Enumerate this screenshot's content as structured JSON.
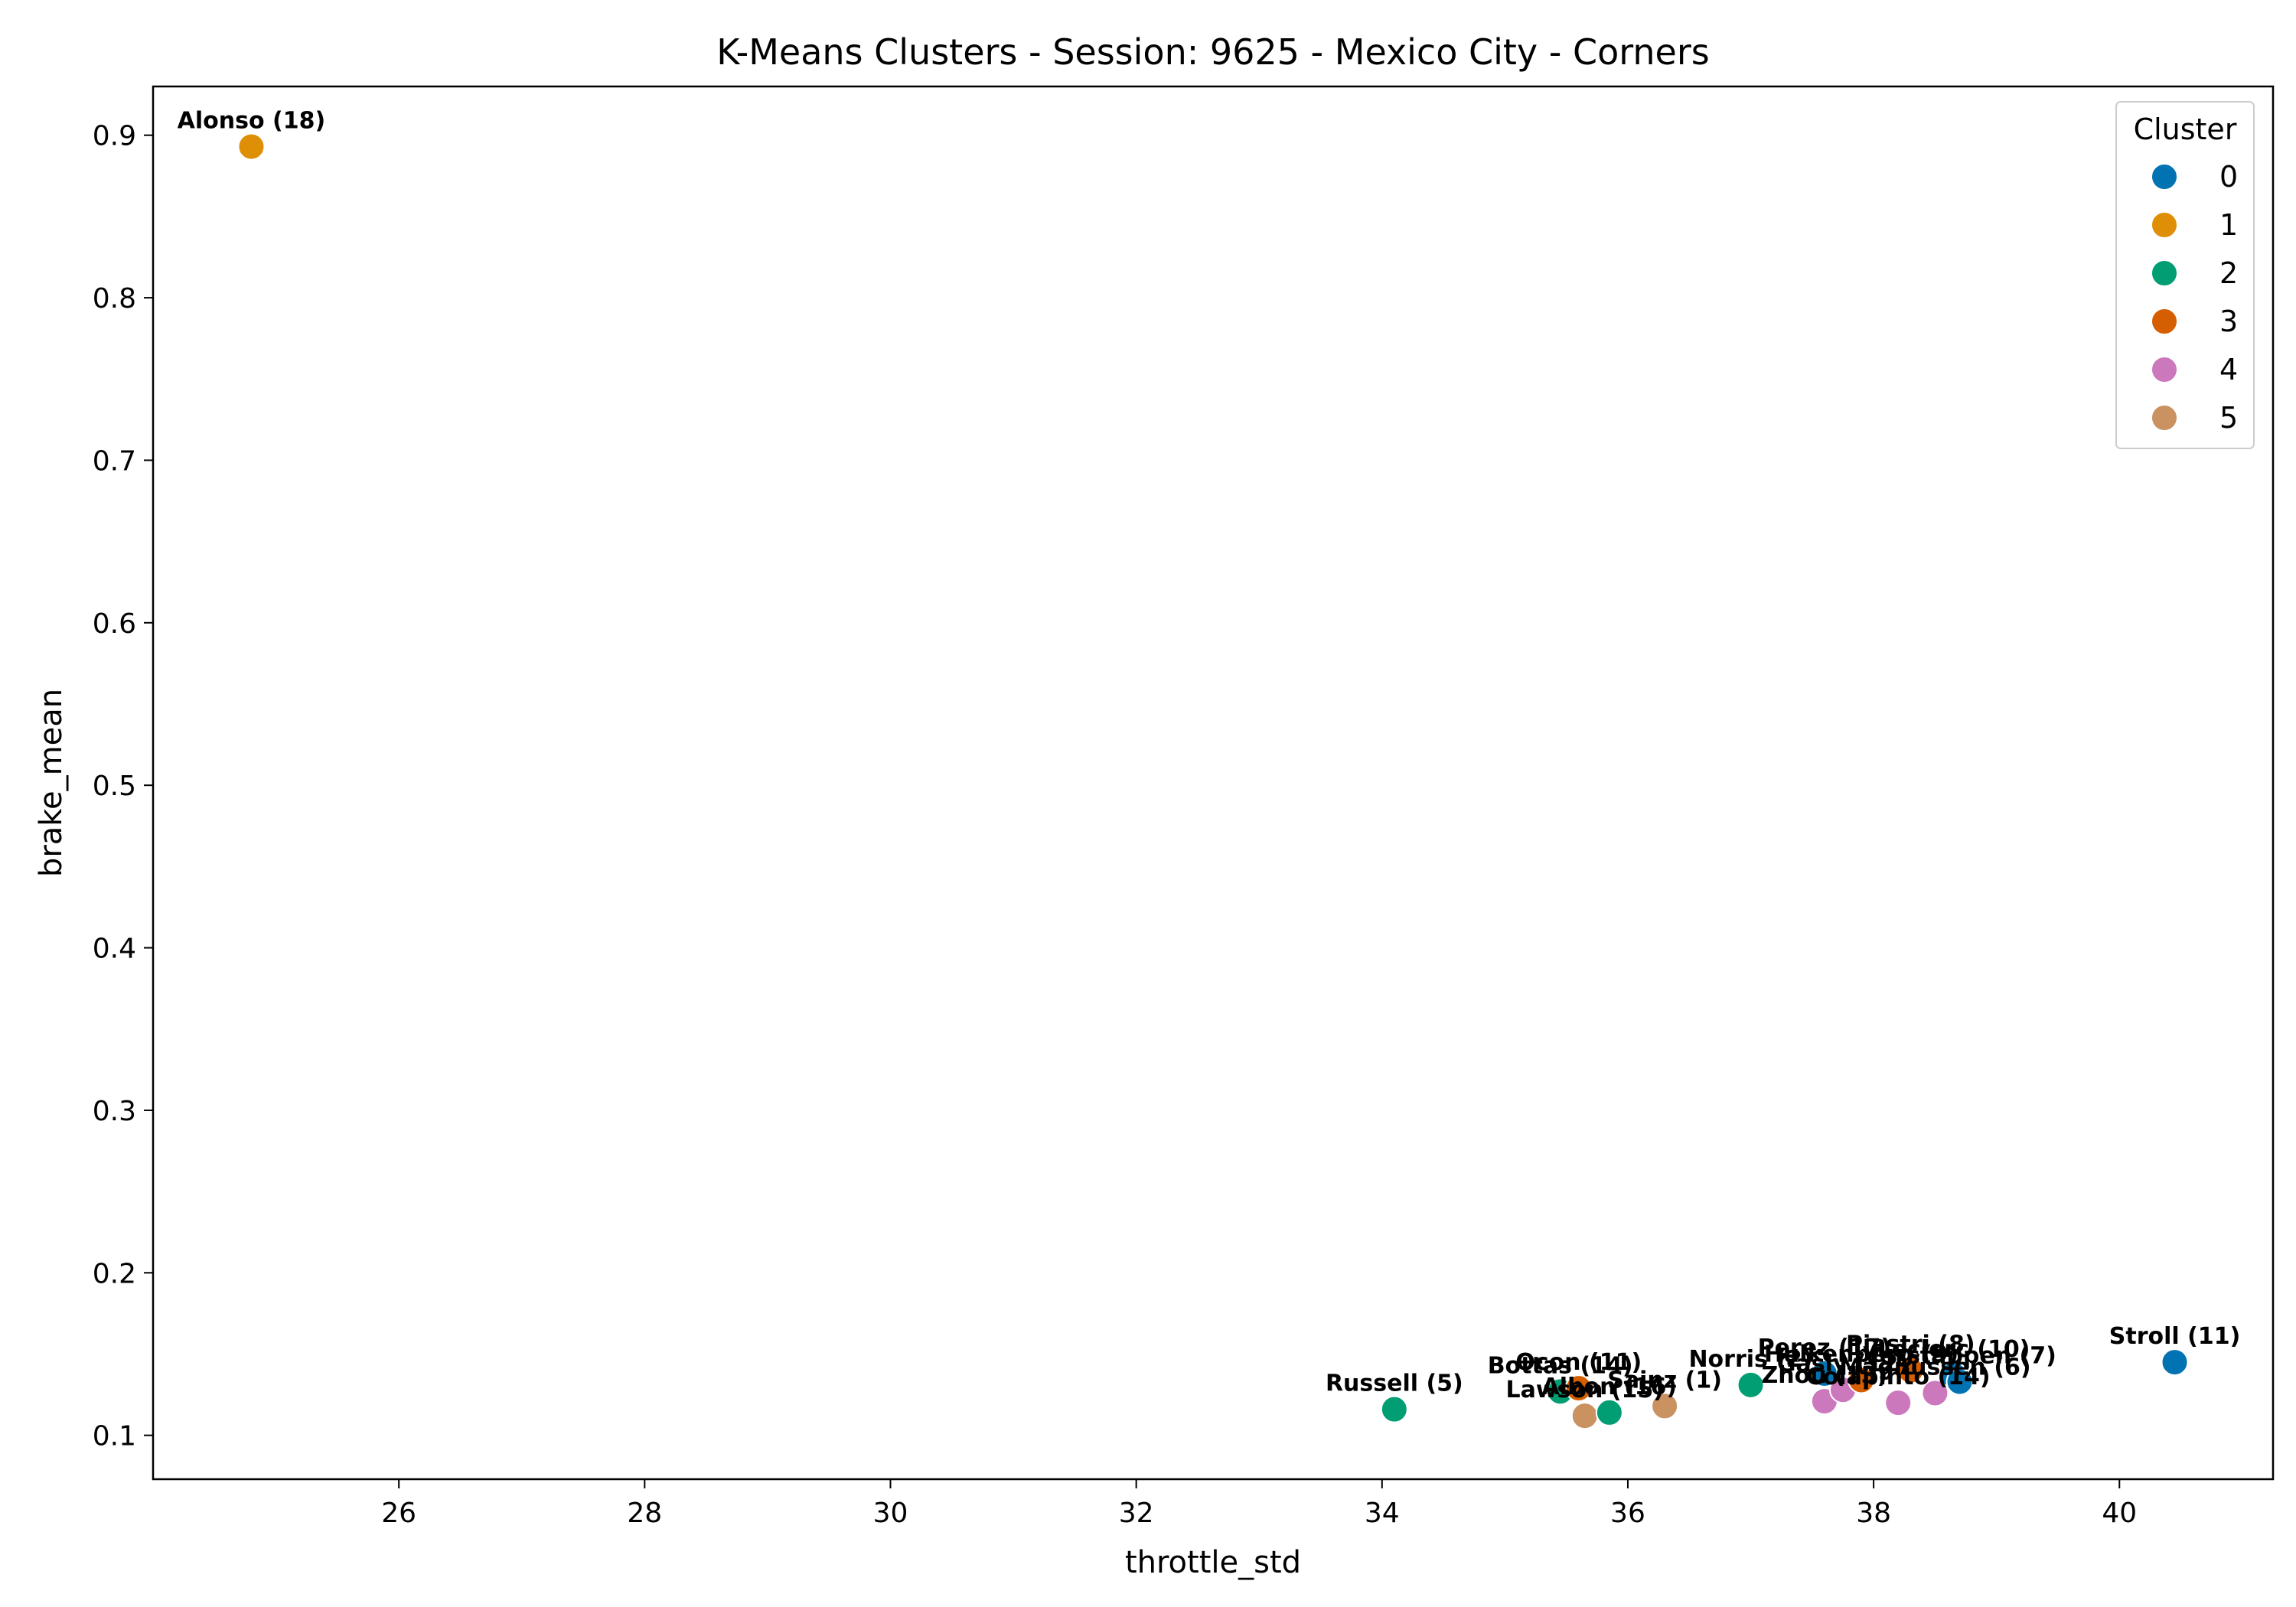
{
  "chart_data": {
    "type": "scatter",
    "title": "K-Means Clusters - Session: 9625 - Mexico City - Corners",
    "xlabel": "throttle_std",
    "ylabel": "brake_mean",
    "xlim": [
      24.0,
      41.25
    ],
    "ylim": [
      0.073,
      0.93
    ],
    "x_ticks": [
      26,
      28,
      30,
      32,
      34,
      36,
      38,
      40
    ],
    "y_ticks": [
      0.1,
      0.2,
      0.3,
      0.4,
      0.5,
      0.6,
      0.7,
      0.8,
      0.9
    ],
    "grid": false,
    "legend": {
      "title": "Cluster",
      "placement": "top-right",
      "entries": [
        {
          "label": "0",
          "color": "#0173b2"
        },
        {
          "label": "1",
          "color": "#de8f05"
        },
        {
          "label": "2",
          "color": "#029e73"
        },
        {
          "label": "3",
          "color": "#d55e00"
        },
        {
          "label": "4",
          "color": "#cc78bc"
        },
        {
          "label": "5",
          "color": "#ca9161"
        }
      ]
    },
    "points": [
      {
        "label": "Alonso (18)",
        "x": 24.8,
        "y": 0.893,
        "cluster": 1
      },
      {
        "label": "Stroll (11)",
        "x": 40.45,
        "y": 0.145,
        "cluster": 0
      },
      {
        "label": "Russell (5)",
        "x": 34.1,
        "y": 0.116,
        "cluster": 2
      },
      {
        "label": "Bottas (14)",
        "x": 35.45,
        "y": 0.127,
        "cluster": 2
      },
      {
        "label": "Ocon (11)",
        "x": 35.6,
        "y": 0.129,
        "cluster": 3
      },
      {
        "label": "Lawson (15)",
        "x": 35.65,
        "y": 0.112,
        "cluster": 5
      },
      {
        "label": "Albon (16)",
        "x": 35.85,
        "y": 0.114,
        "cluster": 2
      },
      {
        "label": "Sainz (1)",
        "x": 36.3,
        "y": 0.118,
        "cluster": 5
      },
      {
        "label": "Norris (2)",
        "x": 37.0,
        "y": 0.131,
        "cluster": 2
      },
      {
        "label": "Perez (17)",
        "x": 37.6,
        "y": 0.138,
        "cluster": 0
      },
      {
        "label": "Zhou (13)",
        "x": 37.6,
        "y": 0.121,
        "cluster": 4
      },
      {
        "label": "Gasly (12)",
        "x": 37.75,
        "y": 0.128,
        "cluster": 4
      },
      {
        "label": "Hulkenberg (9)",
        "x": 37.9,
        "y": 0.134,
        "cluster": 3
      },
      {
        "label": "Colapinto (14)",
        "x": 38.2,
        "y": 0.12,
        "cluster": 4
      },
      {
        "label": "Piastri (8)",
        "x": 38.3,
        "y": 0.14,
        "cluster": 3
      },
      {
        "label": "Magnussen (6)",
        "x": 38.5,
        "y": 0.126,
        "cluster": 4
      },
      {
        "label": "Leclerc (10)",
        "x": 38.65,
        "y": 0.137,
        "cluster": 0
      },
      {
        "label": "Verstappen (7)",
        "x": 38.7,
        "y": 0.133,
        "cluster": 0
      }
    ]
  }
}
